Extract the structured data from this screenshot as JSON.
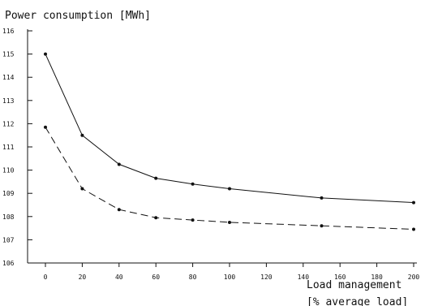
{
  "chart_data": {
    "type": "line",
    "title": "",
    "ylabel": "Power consumption [MWh]",
    "xlabel": "Load management",
    "xlabel_line2": "[% average load]",
    "x": [
      0,
      20,
      40,
      60,
      80,
      100,
      150,
      200
    ],
    "xticks": [
      0,
      20,
      40,
      60,
      80,
      100,
      120,
      140,
      160,
      180,
      200
    ],
    "yticks": [
      106,
      107,
      108,
      109,
      110,
      111,
      112,
      113,
      114,
      115,
      116
    ],
    "xlim": [
      -10,
      200
    ],
    "ylim": [
      106,
      116
    ],
    "grid": false,
    "legend": "none",
    "series": [
      {
        "style": "solid",
        "color": "#111111",
        "values": [
          115.0,
          111.5,
          110.25,
          109.65,
          109.4,
          109.2,
          108.8,
          108.6
        ]
      },
      {
        "style": "dashed",
        "color": "#111111",
        "values": [
          111.85,
          109.2,
          108.3,
          107.95,
          107.85,
          107.75,
          107.6,
          107.45
        ]
      }
    ]
  }
}
